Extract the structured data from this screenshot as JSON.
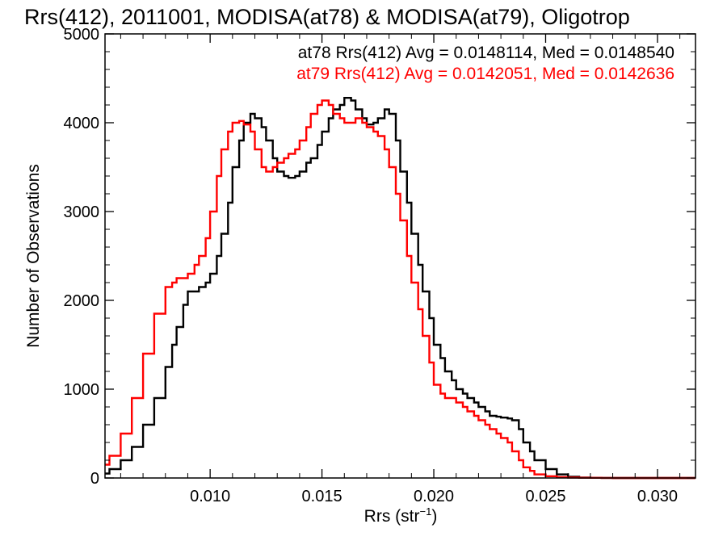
{
  "chart_data": {
    "type": "line",
    "title": "Rrs(412), 2011001, MODISA(at78) & MODISA(at79), Oligotrop",
    "xlabel_main": "Rrs (str",
    "xlabel_sup": "−1",
    "xlabel_close": ")",
    "ylabel": "Number of Observations",
    "xlim": [
      0.0053,
      0.0317
    ],
    "ylim": [
      0,
      5000
    ],
    "xticks": [
      0.01,
      0.015,
      0.02,
      0.025,
      0.03
    ],
    "xtick_labels": [
      "0.010",
      "0.015",
      "0.020",
      "0.025",
      "0.030"
    ],
    "yticks": [
      0,
      1000,
      2000,
      3000,
      4000,
      5000
    ],
    "ytick_labels": [
      "0",
      "1000",
      "2000",
      "3000",
      "4000",
      "5000"
    ],
    "grid": false,
    "legend_position": "top-right",
    "series": [
      {
        "name": "at78",
        "color": "#000000",
        "legend_text": "at78 Rrs(412) Avg = 0.0148114, Med = 0.0148540",
        "x": [
          0.0053,
          0.0055,
          0.006,
          0.0065,
          0.007,
          0.0075,
          0.008,
          0.0083,
          0.0085,
          0.0088,
          0.009,
          0.0093,
          0.0095,
          0.0098,
          0.01,
          0.0103,
          0.0105,
          0.0108,
          0.011,
          0.0113,
          0.0115,
          0.0118,
          0.012,
          0.0123,
          0.0125,
          0.0128,
          0.013,
          0.0133,
          0.0135,
          0.0138,
          0.014,
          0.0143,
          0.0145,
          0.0148,
          0.015,
          0.0153,
          0.0155,
          0.0158,
          0.016,
          0.0163,
          0.0165,
          0.0168,
          0.017,
          0.0173,
          0.0175,
          0.0178,
          0.018,
          0.0183,
          0.0185,
          0.0188,
          0.019,
          0.0193,
          0.0195,
          0.0198,
          0.02,
          0.0203,
          0.0205,
          0.0208,
          0.021,
          0.0213,
          0.0215,
          0.0218,
          0.022,
          0.0223,
          0.0225,
          0.0228,
          0.023,
          0.0233,
          0.0235,
          0.0238,
          0.024,
          0.0243,
          0.0245,
          0.025,
          0.0255,
          0.026,
          0.0265,
          0.027,
          0.0275,
          0.028,
          0.029,
          0.03,
          0.0317
        ],
        "y": [
          50,
          100,
          200,
          350,
          600,
          900,
          1250,
          1500,
          1700,
          1950,
          2100,
          2100,
          2150,
          2200,
          2300,
          2500,
          2750,
          3100,
          3500,
          3800,
          4000,
          4100,
          4050,
          3950,
          3800,
          3600,
          3450,
          3400,
          3380,
          3400,
          3450,
          3550,
          3600,
          3750,
          3900,
          4050,
          4150,
          4200,
          4280,
          4250,
          4150,
          4050,
          3980,
          4000,
          4050,
          4150,
          4100,
          3800,
          3450,
          3100,
          2750,
          2400,
          2100,
          1800,
          1500,
          1350,
          1200,
          1100,
          1000,
          950,
          900,
          850,
          800,
          750,
          700,
          690,
          680,
          670,
          650,
          550,
          400,
          300,
          200,
          100,
          40,
          15,
          5,
          2,
          1,
          0,
          0,
          0,
          0
        ]
      },
      {
        "name": "at79",
        "color": "#ff0000",
        "legend_text": "at79 Rrs(412) Avg = 0.0142051, Med = 0.0142636",
        "x": [
          0.0053,
          0.0055,
          0.006,
          0.0065,
          0.007,
          0.0075,
          0.008,
          0.0083,
          0.0085,
          0.0088,
          0.009,
          0.0093,
          0.0095,
          0.0098,
          0.01,
          0.0103,
          0.0105,
          0.0108,
          0.011,
          0.0113,
          0.0115,
          0.0118,
          0.012,
          0.0123,
          0.0125,
          0.0128,
          0.013,
          0.0133,
          0.0135,
          0.0138,
          0.014,
          0.0143,
          0.0145,
          0.0148,
          0.015,
          0.0153,
          0.0155,
          0.0158,
          0.016,
          0.0163,
          0.0165,
          0.0168,
          0.017,
          0.0173,
          0.0175,
          0.0178,
          0.018,
          0.0183,
          0.0185,
          0.0188,
          0.019,
          0.0193,
          0.0195,
          0.0198,
          0.02,
          0.0203,
          0.0205,
          0.0208,
          0.021,
          0.0213,
          0.0215,
          0.0218,
          0.022,
          0.0223,
          0.0225,
          0.0228,
          0.023,
          0.0233,
          0.0235,
          0.0238,
          0.024,
          0.0243,
          0.0245,
          0.025,
          0.0255,
          0.026,
          0.0265,
          0.027,
          0.0275,
          0.028,
          0.029,
          0.03,
          0.0317
        ],
        "y": [
          150,
          250,
          500,
          900,
          1400,
          1850,
          2150,
          2200,
          2250,
          2250,
          2300,
          2400,
          2500,
          2700,
          3000,
          3400,
          3700,
          3900,
          4000,
          4020,
          3980,
          3900,
          3700,
          3500,
          3450,
          3500,
          3550,
          3600,
          3650,
          3700,
          3800,
          3950,
          4100,
          4200,
          4250,
          4200,
          4100,
          4050,
          4000,
          4000,
          4050,
          4000,
          3950,
          3900,
          3850,
          3700,
          3500,
          3200,
          2900,
          2500,
          2200,
          1900,
          1600,
          1300,
          1050,
          950,
          900,
          900,
          850,
          800,
          750,
          700,
          650,
          600,
          550,
          500,
          450,
          400,
          300,
          200,
          120,
          80,
          40,
          20,
          10,
          5,
          3,
          2,
          1,
          0,
          0,
          0,
          0
        ]
      }
    ]
  }
}
